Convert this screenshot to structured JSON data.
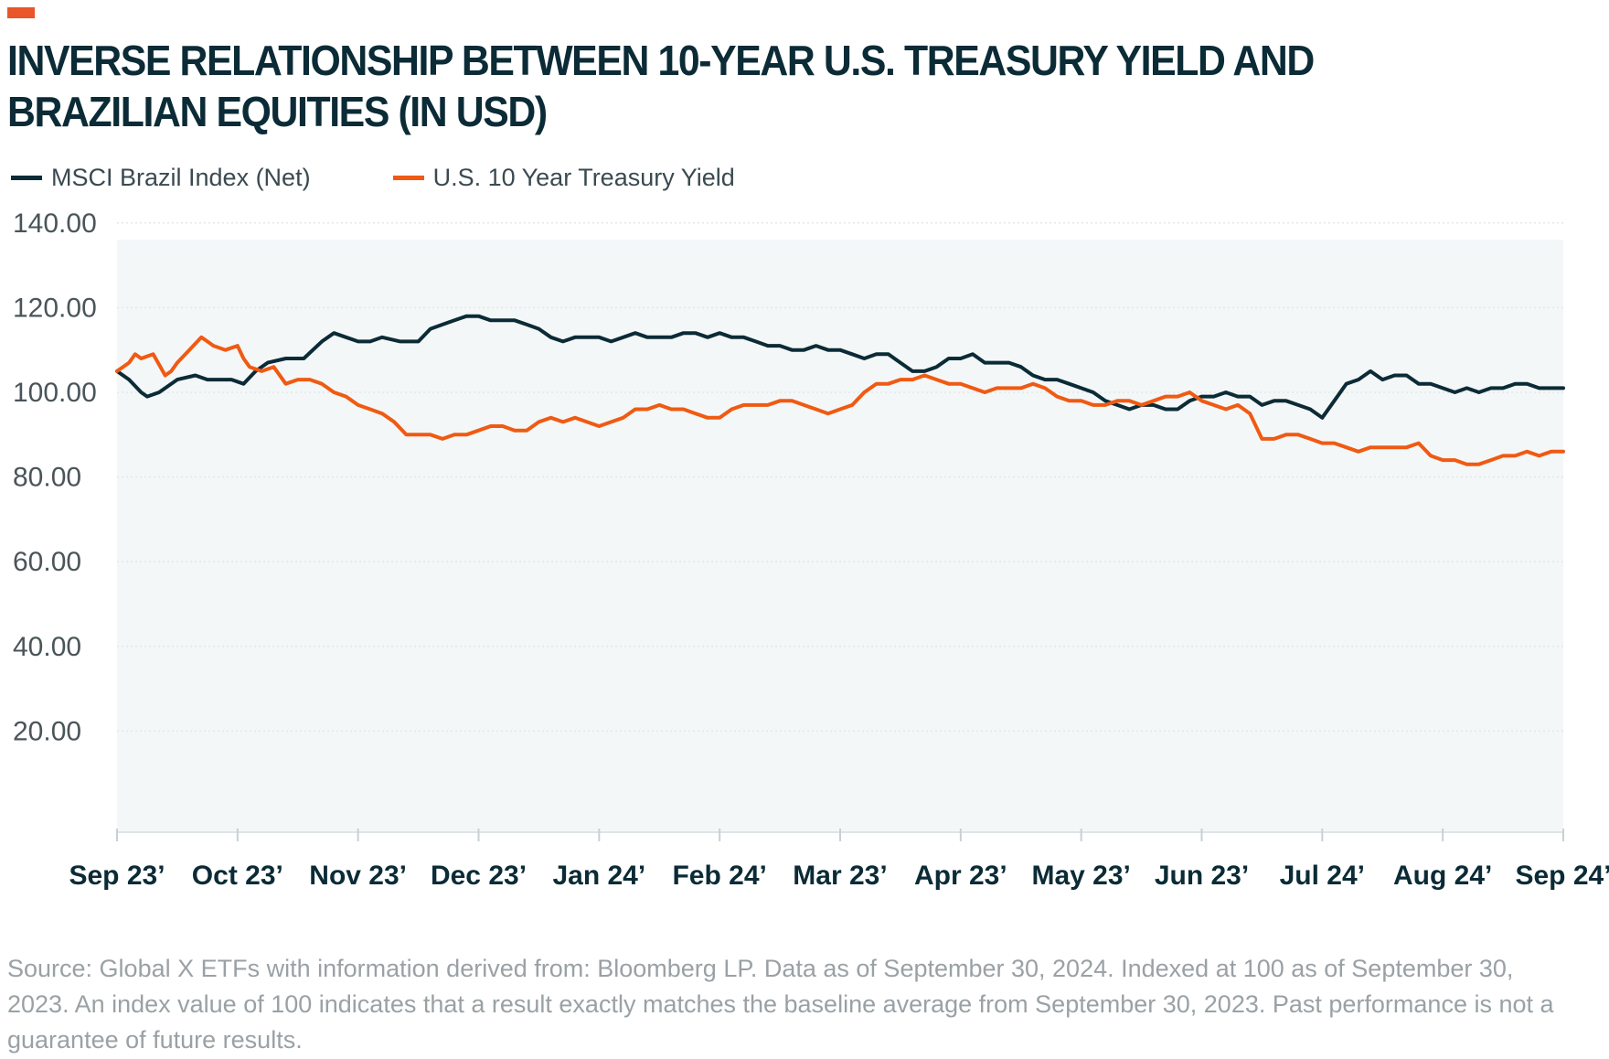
{
  "title": "INVERSE RELATIONSHIP BETWEEN 10-YEAR U.S. TREASURY YIELD AND BRAZILIAN EQUITIES (IN USD)",
  "source": "Source: Global X ETFs with information derived from: Bloomberg LP. Data as of September 30, 2024. Indexed at 100 as of September 30, 2023. An index value of 100 indicates that a result exactly matches the baseline average from September 30, 2023. Past performance is not a guarantee of future results.",
  "colors": {
    "accent": "#e8562a",
    "brazil": "#0b2b36",
    "treasury": "#f05a12",
    "plot_bg": "#f4f7f8",
    "grid": "#e2e7e9",
    "tick": "#0b2b36",
    "ytick": "#4a5559"
  },
  "chart_data": {
    "type": "line",
    "title": "INVERSE RELATIONSHIP BETWEEN 10-YEAR U.S. TREASURY YIELD AND BRAZILIAN EQUITIES (IN USD)",
    "xlabel": "",
    "ylabel": "",
    "ylim": [
      0,
      140
    ],
    "yticks": [
      20,
      40,
      60,
      80,
      100,
      120,
      140
    ],
    "ytick_labels": [
      "20.00",
      "40.00",
      "60.00",
      "80.00",
      "100.00",
      "120.00",
      "140.00"
    ],
    "grid": true,
    "legend_position": "top-left",
    "categories": [
      "Sep 23’",
      "Oct 23’",
      "Nov 23’",
      "Dec 23’",
      "Jan 24’",
      "Feb 24’",
      "Mar 23’",
      "Apr 23’",
      "May 23’",
      "Jun 23’",
      "Jul 24’",
      "Aug 24’",
      "Sep 24’"
    ],
    "series": [
      {
        "name": "MSCI Brazil Index (Net)",
        "color": "#0b2b36",
        "x": [
          0,
          0.1,
          0.2,
          0.25,
          0.35,
          0.4,
          0.5,
          0.65,
          0.75,
          0.85,
          0.95,
          1.05,
          1.15,
          1.25,
          1.4,
          1.55,
          1.7,
          1.8,
          1.9,
          2.0,
          2.1,
          2.2,
          2.35,
          2.5,
          2.6,
          2.7,
          2.8,
          2.9,
          3.0,
          3.1,
          3.2,
          3.3,
          3.4,
          3.5,
          3.6,
          3.7,
          3.8,
          3.9,
          4.0,
          4.1,
          4.2,
          4.3,
          4.4,
          4.5,
          4.6,
          4.7,
          4.8,
          4.9,
          5.0,
          5.1,
          5.2,
          5.3,
          5.4,
          5.5,
          5.6,
          5.7,
          5.8,
          5.9,
          6.0,
          6.1,
          6.2,
          6.3,
          6.4,
          6.5,
          6.6,
          6.7,
          6.8,
          6.9,
          7.0,
          7.1,
          7.2,
          7.3,
          7.4,
          7.5,
          7.6,
          7.7,
          7.8,
          7.9,
          8.0,
          8.1,
          8.2,
          8.3,
          8.4,
          8.5,
          8.6,
          8.7,
          8.8,
          8.9,
          9.0,
          9.1,
          9.2,
          9.3,
          9.4,
          9.5,
          9.6,
          9.7,
          9.8,
          9.9,
          10.0,
          10.1,
          10.2,
          10.3,
          10.4,
          10.5,
          10.6,
          10.7,
          10.8,
          10.9,
          11.0,
          11.1,
          11.2,
          11.3,
          11.4,
          11.5,
          11.6,
          11.7,
          11.8,
          11.9,
          12.0
        ],
        "values": [
          105,
          103,
          100,
          99,
          100,
          101,
          103,
          104,
          103,
          103,
          103,
          102,
          105,
          107,
          108,
          108,
          112,
          114,
          113,
          112,
          112,
          113,
          112,
          112,
          115,
          116,
          117,
          118,
          118,
          117,
          117,
          117,
          116,
          115,
          113,
          112,
          113,
          113,
          113,
          112,
          113,
          114,
          113,
          113,
          113,
          114,
          114,
          113,
          114,
          113,
          113,
          112,
          111,
          111,
          110,
          110,
          111,
          110,
          110,
          109,
          108,
          109,
          109,
          107,
          105,
          105,
          106,
          108,
          108,
          109,
          107,
          107,
          107,
          106,
          104,
          103,
          103,
          102,
          101,
          100,
          98,
          97,
          96,
          97,
          97,
          96,
          96,
          98,
          99,
          99,
          100,
          99,
          99,
          97,
          98,
          98,
          97,
          96,
          94,
          98,
          102,
          103,
          105,
          103,
          104,
          104,
          102,
          102,
          101,
          100,
          101,
          100,
          101,
          101,
          102,
          102,
          101,
          101,
          101
        ]
      },
      {
        "name": "U.S. 10 Year Treasury Yield",
        "color": "#f05a12",
        "x": [
          0,
          0.1,
          0.15,
          0.2,
          0.3,
          0.4,
          0.45,
          0.5,
          0.6,
          0.7,
          0.75,
          0.8,
          0.9,
          1.0,
          1.05,
          1.1,
          1.2,
          1.3,
          1.4,
          1.5,
          1.6,
          1.7,
          1.8,
          1.9,
          2.0,
          2.1,
          2.2,
          2.3,
          2.4,
          2.5,
          2.6,
          2.7,
          2.8,
          2.9,
          3.0,
          3.1,
          3.2,
          3.3,
          3.4,
          3.5,
          3.6,
          3.7,
          3.8,
          3.9,
          4.0,
          4.1,
          4.2,
          4.3,
          4.4,
          4.5,
          4.6,
          4.7,
          4.8,
          4.9,
          5.0,
          5.1,
          5.2,
          5.3,
          5.4,
          5.5,
          5.6,
          5.7,
          5.8,
          5.9,
          6.0,
          6.1,
          6.2,
          6.3,
          6.4,
          6.5,
          6.6,
          6.7,
          6.8,
          6.9,
          7.0,
          7.1,
          7.2,
          7.3,
          7.4,
          7.5,
          7.6,
          7.7,
          7.8,
          7.9,
          8.0,
          8.1,
          8.2,
          8.3,
          8.4,
          8.5,
          8.6,
          8.7,
          8.8,
          8.9,
          9.0,
          9.1,
          9.2,
          9.3,
          9.4,
          9.5,
          9.6,
          9.7,
          9.8,
          9.9,
          10.0,
          10.1,
          10.2,
          10.3,
          10.4,
          10.5,
          10.6,
          10.7,
          10.8,
          10.9,
          11.0,
          11.1,
          11.2,
          11.3,
          11.4,
          11.5,
          11.6,
          11.7,
          11.8,
          11.9,
          12.0
        ],
        "values": [
          105,
          107,
          109,
          108,
          109,
          104,
          105,
          107,
          110,
          113,
          112,
          111,
          110,
          111,
          108,
          106,
          105,
          106,
          102,
          103,
          103,
          102,
          100,
          99,
          97,
          96,
          95,
          93,
          90,
          90,
          90,
          89,
          90,
          90,
          91,
          92,
          92,
          91,
          91,
          93,
          94,
          93,
          94,
          93,
          92,
          93,
          94,
          96,
          96,
          97,
          96,
          96,
          95,
          94,
          94,
          96,
          97,
          97,
          97,
          98,
          98,
          97,
          96,
          95,
          96,
          97,
          100,
          102,
          102,
          103,
          103,
          104,
          103,
          102,
          102,
          101,
          100,
          101,
          101,
          101,
          102,
          101,
          99,
          98,
          98,
          97,
          97,
          98,
          98,
          97,
          98,
          99,
          99,
          100,
          98,
          97,
          96,
          97,
          95,
          89,
          89,
          90,
          90,
          89,
          88,
          88,
          87,
          86,
          87,
          87,
          87,
          87,
          88,
          85,
          84,
          84,
          83,
          83,
          84,
          85,
          85,
          86,
          85,
          86,
          86
        ]
      }
    ]
  }
}
